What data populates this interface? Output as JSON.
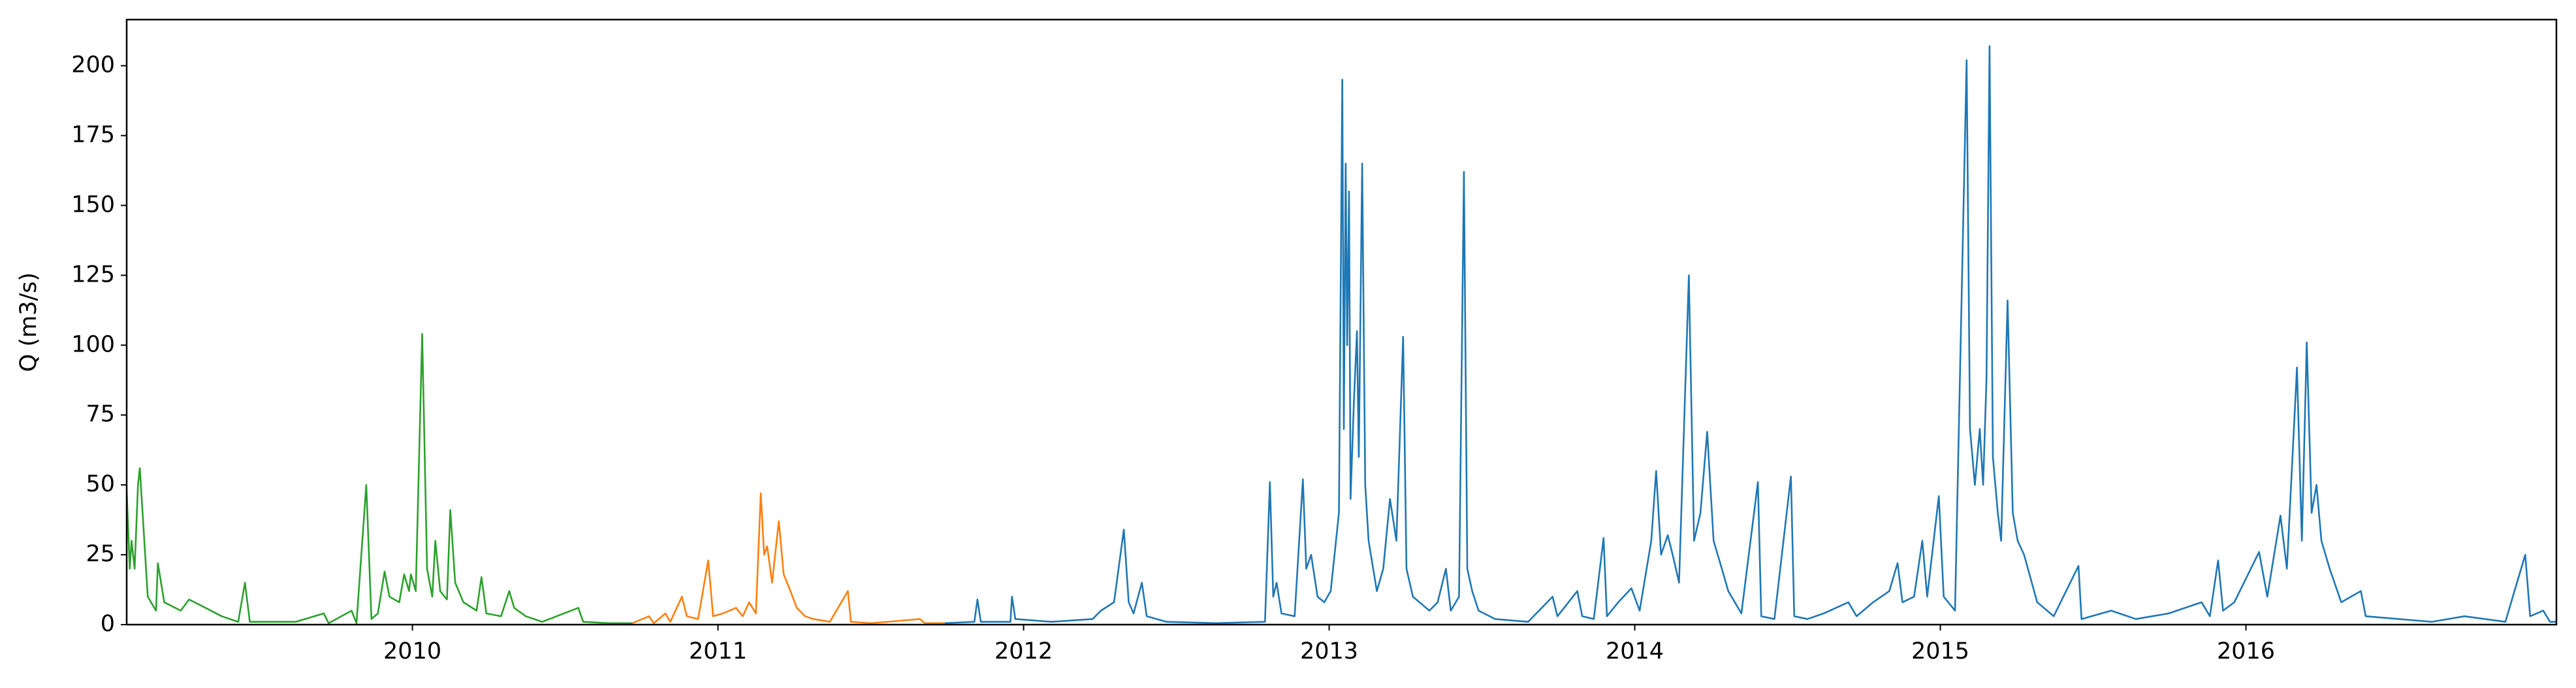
{
  "chart_data": {
    "type": "line",
    "y_label": "Q (m3/s)",
    "xlim": [
      2009.065,
      2017.016
    ],
    "xticks": [
      2010,
      2011,
      2012,
      2013,
      2014,
      2015,
      2016
    ],
    "ylim": [
      0,
      216.5
    ],
    "yticks": [
      0,
      25,
      50,
      75,
      100,
      125,
      150,
      175,
      200
    ],
    "series": [
      {
        "color": "#2ca02c",
        "x": [
          2009.065,
          2009.075,
          2009.081,
          2009.091,
          2009.102,
          2009.108,
          2009.134,
          2009.161,
          2009.167,
          2009.188,
          2009.242,
          2009.269,
          2009.323,
          2009.376,
          2009.43,
          2009.452,
          2009.468,
          2009.618,
          2009.71,
          2009.726,
          2009.801,
          2009.817,
          2009.849,
          2009.866,
          2009.887,
          2009.909,
          2009.925,
          2009.957,
          2009.973,
          2009.989,
          2009.995,
          2010.011,
          2010.032,
          2010.048,
          2010.065,
          2010.075,
          2010.091,
          2010.113,
          2010.124,
          2010.14,
          2010.167,
          2010.21,
          2010.226,
          2010.242,
          2010.29,
          2010.317,
          2010.333,
          2010.371,
          2010.425,
          2010.543,
          2010.559,
          2010.64,
          2010.72
        ],
        "values": [
          48,
          20,
          30,
          20,
          50,
          56,
          10,
          5,
          22,
          8,
          5,
          9,
          6,
          3,
          1,
          15,
          1,
          1,
          4,
          0.5,
          5,
          0.5,
          50,
          2,
          4,
          19,
          10,
          8,
          18,
          12,
          18,
          12,
          104,
          20,
          10,
          30,
          12,
          9,
          41,
          15,
          8,
          5,
          17,
          4,
          3,
          12,
          6,
          3,
          1,
          6,
          1,
          0.5,
          0.5
        ]
      },
      {
        "color": "#ff7f0e",
        "x": [
          2010.72,
          2010.774,
          2010.79,
          2010.828,
          2010.844,
          2010.882,
          2010.898,
          2010.935,
          2010.968,
          2010.984,
          2011.016,
          2011.059,
          2011.081,
          2011.102,
          2011.124,
          2011.14,
          2011.151,
          2011.161,
          2011.177,
          2011.199,
          2011.215,
          2011.237,
          2011.258,
          2011.285,
          2011.312,
          2011.366,
          2011.425,
          2011.435,
          2011.5,
          2011.661,
          2011.677,
          2011.742
        ],
        "values": [
          0.5,
          3,
          0.5,
          4,
          1,
          10,
          3,
          2,
          23,
          3,
          4,
          6,
          3,
          8,
          4,
          47,
          25,
          28,
          15,
          37,
          18,
          12,
          6,
          3,
          2,
          1,
          12,
          1,
          0.5,
          2,
          0.5,
          0.5
        ]
      },
      {
        "color": "#1f77b4",
        "x": [
          2011.742,
          2011.839,
          2011.849,
          2011.86,
          2011.957,
          2011.962,
          2011.973,
          2012.091,
          2012.226,
          2012.253,
          2012.296,
          2012.328,
          2012.344,
          2012.36,
          2012.387,
          2012.403,
          2012.468,
          2012.629,
          2012.79,
          2012.806,
          2012.817,
          2012.828,
          2012.844,
          2012.887,
          2012.914,
          2012.925,
          2012.941,
          2012.962,
          2012.984,
          2013.005,
          2013.032,
          2013.043,
          2013.048,
          2013.054,
          2013.059,
          2013.065,
          2013.07,
          2013.081,
          2013.091,
          2013.097,
          2013.108,
          2013.118,
          2013.129,
          2013.156,
          2013.177,
          2013.199,
          2013.22,
          2013.242,
          2013.253,
          2013.274,
          2013.328,
          2013.355,
          2013.382,
          2013.398,
          2013.425,
          2013.441,
          2013.452,
          2013.468,
          2013.489,
          2013.543,
          2013.651,
          2013.731,
          2013.747,
          2013.812,
          2013.828,
          2013.866,
          2013.898,
          2013.909,
          2013.946,
          2013.989,
          2014.016,
          2014.054,
          2014.07,
          2014.086,
          2014.108,
          2014.124,
          2014.145,
          2014.177,
          2014.194,
          2014.215,
          2014.237,
          2014.258,
          2014.285,
          2014.306,
          2014.349,
          2014.403,
          2014.414,
          2014.457,
          2014.511,
          2014.522,
          2014.565,
          2014.618,
          2014.699,
          2014.726,
          2014.78,
          2014.833,
          2014.86,
          2014.876,
          2014.914,
          2014.941,
          2014.957,
          2014.995,
          2015.011,
          2015.048,
          2015.086,
          2015.097,
          2015.113,
          2015.129,
          2015.14,
          2015.151,
          2015.161,
          2015.172,
          2015.188,
          2015.199,
          2015.22,
          2015.237,
          2015.253,
          2015.274,
          2015.317,
          2015.371,
          2015.452,
          2015.462,
          2015.559,
          2015.64,
          2015.747,
          2015.855,
          2015.882,
          2015.909,
          2015.925,
          2015.962,
          2016.016,
          2016.043,
          2016.07,
          2016.113,
          2016.134,
          2016.167,
          2016.183,
          2016.199,
          2016.215,
          2016.231,
          2016.247,
          2016.274,
          2016.312,
          2016.376,
          2016.392,
          2016.5,
          2016.608,
          2016.715,
          2016.849,
          2016.914,
          2016.93,
          2016.973,
          2016.995,
          2017.016
        ],
        "values": [
          0.5,
          1,
          9,
          1,
          1,
          10,
          2,
          1,
          2,
          5,
          8,
          34,
          8,
          4,
          15,
          3,
          1,
          0.5,
          1,
          51,
          10,
          15,
          4,
          3,
          52,
          20,
          25,
          10,
          8,
          12,
          40,
          195,
          70,
          165,
          100,
          155,
          45,
          80,
          105,
          60,
          165,
          50,
          30,
          12,
          20,
          45,
          30,
          103,
          20,
          10,
          5,
          8,
          20,
          5,
          10,
          162,
          20,
          12,
          5,
          2,
          1,
          10,
          3,
          12,
          3,
          2,
          31,
          3,
          8,
          13,
          5,
          30,
          55,
          25,
          32,
          25,
          15,
          125,
          30,
          40,
          69,
          30,
          20,
          12,
          4,
          51,
          3,
          2,
          53,
          3,
          2,
          4,
          8,
          3,
          8,
          12,
          22,
          8,
          10,
          30,
          10,
          46,
          10,
          5,
          202,
          70,
          50,
          70,
          50,
          88,
          207,
          60,
          40,
          30,
          116,
          40,
          30,
          25,
          8,
          3,
          21,
          2,
          5,
          2,
          4,
          8,
          3,
          23,
          5,
          8,
          20,
          26,
          10,
          39,
          20,
          92,
          30,
          101,
          40,
          50,
          30,
          20,
          8,
          12,
          3,
          2,
          1,
          3,
          1,
          25,
          3,
          5,
          1,
          1
        ]
      }
    ]
  }
}
